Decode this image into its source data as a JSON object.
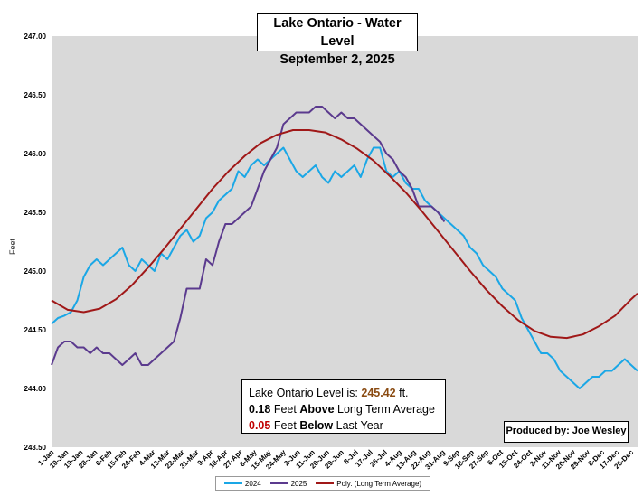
{
  "title_line1": "Lake Ontario - Water Level",
  "title_line2": "September 2, 2025",
  "info": {
    "level_label": "Lake Ontario Level is:",
    "level_value": "245.42",
    "level_unit": "ft.",
    "above_value": "0.18",
    "above_word": "Above",
    "above_prefix": "Feet",
    "above_suffix": "Long Term Average",
    "below_value": "0.05",
    "below_word": "Below",
    "below_prefix": "Feet",
    "below_suffix": "Last Year"
  },
  "credit": "Produced by: Joe Wesley",
  "colors": {
    "s2024": "#1aa7e6",
    "s2025": "#5b3a8e",
    "avg": "#a01818",
    "plot_bg": "#d9d9d9"
  },
  "chart_data": {
    "type": "line",
    "ylabel": "Feet",
    "ylim": [
      243.5,
      247.0
    ],
    "yticks": [
      "247.00",
      "246.50",
      "246.00",
      "245.50",
      "245.00",
      "244.50",
      "244.00",
      "243.50"
    ],
    "x_range_days": [
      1,
      365
    ],
    "xticks": [
      {
        "day": 1,
        "label": "1-Jan"
      },
      {
        "day": 10,
        "label": "10-Jan"
      },
      {
        "day": 19,
        "label": "19-Jan"
      },
      {
        "day": 28,
        "label": "28-Jan"
      },
      {
        "day": 37,
        "label": "6-Feb"
      },
      {
        "day": 46,
        "label": "15-Feb"
      },
      {
        "day": 55,
        "label": "24-Feb"
      },
      {
        "day": 64,
        "label": "4-Mar"
      },
      {
        "day": 73,
        "label": "13-Mar"
      },
      {
        "day": 82,
        "label": "22-Mar"
      },
      {
        "day": 91,
        "label": "31-Mar"
      },
      {
        "day": 100,
        "label": "9-Apr"
      },
      {
        "day": 109,
        "label": "18-Apr"
      },
      {
        "day": 118,
        "label": "27-Apr"
      },
      {
        "day": 127,
        "label": "6-May"
      },
      {
        "day": 136,
        "label": "15-May"
      },
      {
        "day": 145,
        "label": "24-May"
      },
      {
        "day": 154,
        "label": "2-Jun"
      },
      {
        "day": 163,
        "label": "11-Jun"
      },
      {
        "day": 172,
        "label": "20-Jun"
      },
      {
        "day": 181,
        "label": "29-Jun"
      },
      {
        "day": 190,
        "label": "8-Jul"
      },
      {
        "day": 199,
        "label": "17-Jul"
      },
      {
        "day": 208,
        "label": "26-Jul"
      },
      {
        "day": 217,
        "label": "4-Aug"
      },
      {
        "day": 226,
        "label": "13-Aug"
      },
      {
        "day": 235,
        "label": "22-Aug"
      },
      {
        "day": 244,
        "label": "31-Aug"
      },
      {
        "day": 253,
        "label": "9-Sep"
      },
      {
        "day": 262,
        "label": "18-Sep"
      },
      {
        "day": 271,
        "label": "27-Sep"
      },
      {
        "day": 280,
        "label": "6-Oct"
      },
      {
        "day": 289,
        "label": "15-Oct"
      },
      {
        "day": 298,
        "label": "24-Oct"
      },
      {
        "day": 307,
        "label": "2-Nov"
      },
      {
        "day": 316,
        "label": "11-Nov"
      },
      {
        "day": 325,
        "label": "20-Nov"
      },
      {
        "day": 334,
        "label": "29-Nov"
      },
      {
        "day": 343,
        "label": "8-Dec"
      },
      {
        "day": 352,
        "label": "17-Dec"
      },
      {
        "day": 361,
        "label": "26-Dec"
      }
    ],
    "series": [
      {
        "name": "2024",
        "x": [
          1,
          5,
          9,
          13,
          17,
          21,
          25,
          29,
          33,
          37,
          41,
          45,
          49,
          53,
          57,
          61,
          65,
          69,
          73,
          77,
          81,
          85,
          89,
          93,
          97,
          101,
          105,
          109,
          113,
          117,
          121,
          125,
          129,
          133,
          137,
          141,
          145,
          149,
          153,
          157,
          161,
          165,
          169,
          173,
          177,
          181,
          185,
          189,
          193,
          197,
          201,
          205,
          209,
          213,
          217,
          221,
          225,
          229,
          233,
          237,
          241,
          245,
          249,
          253,
          257,
          261,
          265,
          269,
          273,
          277,
          281,
          285,
          289,
          293,
          297,
          301,
          305,
          309,
          313,
          317,
          321,
          325,
          329,
          333,
          337,
          341,
          345,
          349,
          353,
          357,
          361,
          365
        ],
        "y": [
          244.55,
          244.6,
          244.62,
          244.65,
          244.75,
          244.95,
          245.05,
          245.1,
          245.05,
          245.1,
          245.15,
          245.2,
          245.05,
          245.0,
          245.1,
          245.05,
          245.0,
          245.15,
          245.1,
          245.2,
          245.3,
          245.35,
          245.25,
          245.3,
          245.45,
          245.5,
          245.6,
          245.65,
          245.7,
          245.85,
          245.8,
          245.9,
          245.95,
          245.9,
          245.95,
          246.0,
          246.05,
          245.95,
          245.85,
          245.8,
          245.85,
          245.9,
          245.8,
          245.75,
          245.85,
          245.8,
          245.85,
          245.9,
          245.8,
          245.95,
          246.05,
          246.05,
          245.85,
          245.8,
          245.85,
          245.75,
          245.7,
          245.7,
          245.6,
          245.55,
          245.5,
          245.45,
          245.4,
          245.35,
          245.3,
          245.2,
          245.15,
          245.05,
          245.0,
          244.95,
          244.85,
          244.8,
          244.75,
          244.6,
          244.5,
          244.4,
          244.3,
          244.3,
          244.25,
          244.15,
          244.1,
          244.05,
          244.0,
          244.05,
          244.1,
          244.1,
          244.15,
          244.15,
          244.2,
          244.25,
          244.2,
          244.15
        ]
      },
      {
        "name": "2025",
        "x": [
          1,
          5,
          9,
          13,
          17,
          21,
          25,
          29,
          33,
          37,
          41,
          45,
          49,
          53,
          57,
          61,
          65,
          69,
          73,
          77,
          81,
          85,
          89,
          93,
          97,
          101,
          105,
          109,
          113,
          117,
          121,
          125,
          129,
          133,
          137,
          141,
          145,
          149,
          153,
          157,
          161,
          165,
          169,
          173,
          177,
          181,
          185,
          189,
          193,
          197,
          201,
          205,
          209,
          213,
          217,
          221,
          225,
          229,
          233,
          237,
          241,
          245
        ],
        "y": [
          244.2,
          244.35,
          244.4,
          244.4,
          244.35,
          244.35,
          244.3,
          244.35,
          244.3,
          244.3,
          244.25,
          244.2,
          244.25,
          244.3,
          244.2,
          244.2,
          244.25,
          244.3,
          244.35,
          244.4,
          244.6,
          244.85,
          244.85,
          244.85,
          245.1,
          245.05,
          245.25,
          245.4,
          245.4,
          245.45,
          245.5,
          245.55,
          245.7,
          245.85,
          245.95,
          246.05,
          246.25,
          246.3,
          246.35,
          246.35,
          246.35,
          246.4,
          246.4,
          246.35,
          246.3,
          246.35,
          246.3,
          246.3,
          246.25,
          246.2,
          246.15,
          246.1,
          246.0,
          245.95,
          245.85,
          245.8,
          245.7,
          245.55,
          245.55,
          245.55,
          245.5,
          245.42
        ]
      },
      {
        "name": "Poly. (Long Term Average)",
        "x": [
          1,
          11,
          21,
          31,
          41,
          51,
          61,
          71,
          81,
          91,
          101,
          111,
          121,
          131,
          141,
          151,
          161,
          171,
          181,
          191,
          201,
          211,
          221,
          231,
          241,
          251,
          261,
          271,
          281,
          291,
          301,
          311,
          321,
          331,
          341,
          351,
          361,
          365
        ],
        "y": [
          244.75,
          244.67,
          244.65,
          244.68,
          244.76,
          244.88,
          245.03,
          245.19,
          245.36,
          245.53,
          245.7,
          245.85,
          245.98,
          246.09,
          246.16,
          246.2,
          246.2,
          246.18,
          246.12,
          246.04,
          245.94,
          245.81,
          245.67,
          245.51,
          245.34,
          245.17,
          245.0,
          244.84,
          244.7,
          244.58,
          244.49,
          244.44,
          244.43,
          244.46,
          244.53,
          244.62,
          244.76,
          244.81
        ]
      }
    ],
    "legend_position": "bottom",
    "grid": false
  }
}
